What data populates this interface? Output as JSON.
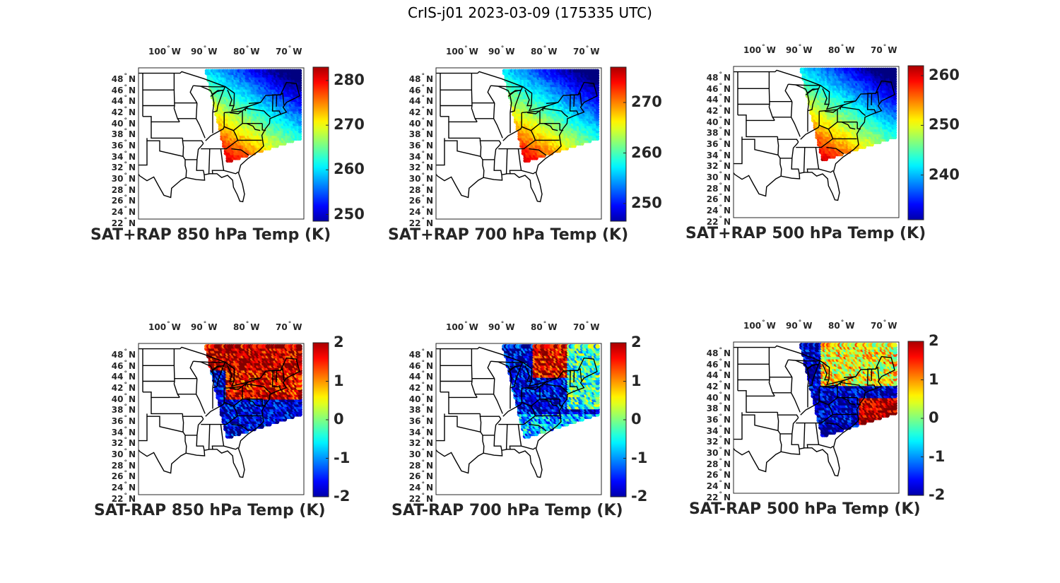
{
  "figure": {
    "title": "CrIS-j01 2023-03-09 (175335 UTC)"
  },
  "axes": {
    "lon_ticks": [
      {
        "value": 100,
        "deg": "°",
        "hemi": "W"
      },
      {
        "value": 90,
        "deg": "°",
        "hemi": "W"
      },
      {
        "value": 80,
        "deg": "°",
        "hemi": "W"
      },
      {
        "value": 70,
        "deg": "°",
        "hemi": "W"
      }
    ],
    "lat_ticks": [
      {
        "value": 48,
        "deg": "°",
        "hemi": "N"
      },
      {
        "value": 46,
        "deg": "°",
        "hemi": "N"
      },
      {
        "value": 44,
        "deg": "°",
        "hemi": "N"
      },
      {
        "value": 42,
        "deg": "°",
        "hemi": "N"
      },
      {
        "value": 40,
        "deg": "°",
        "hemi": "N"
      },
      {
        "value": 38,
        "deg": "°",
        "hemi": "N"
      },
      {
        "value": 36,
        "deg": "°",
        "hemi": "N"
      },
      {
        "value": 34,
        "deg": "°",
        "hemi": "N"
      },
      {
        "value": 32,
        "deg": "°",
        "hemi": "N"
      },
      {
        "value": 30,
        "deg": "°",
        "hemi": "N"
      },
      {
        "value": 28,
        "deg": "°",
        "hemi": "N"
      },
      {
        "value": 26,
        "deg": "°",
        "hemi": "N"
      },
      {
        "value": 24,
        "deg": "°",
        "hemi": "N"
      },
      {
        "value": 22,
        "deg": "°",
        "hemi": "N"
      }
    ],
    "lon_range": [
      -105,
      -66
    ],
    "lat_range": [
      22,
      50
    ]
  },
  "colormap": "jet",
  "map_colors": {
    "border": "#000000",
    "frame": "#262626",
    "background": "#ffffff"
  },
  "panels": [
    {
      "id": "sat-rap-sum-850",
      "title": "SAT+RAP 850 hPa Temp (K)",
      "field": "absolute",
      "level_hpa": 850,
      "cbar_ticks": [
        280,
        270,
        260,
        250
      ],
      "clim": [
        248.5,
        283
      ]
    },
    {
      "id": "sat-rap-sum-700",
      "title": "SAT+RAP 700 hPa Temp (K)",
      "field": "absolute",
      "level_hpa": 700,
      "cbar_ticks": [
        270,
        260,
        250
      ],
      "clim": [
        246.5,
        277
      ]
    },
    {
      "id": "sat-rap-sum-500",
      "title": "SAT+RAP 500 hPa Temp (K)",
      "field": "absolute",
      "level_hpa": 500,
      "cbar_ticks": [
        260,
        250,
        240
      ],
      "clim": [
        231,
        262
      ]
    },
    {
      "id": "sat-rap-diff-850",
      "title": "SAT-RAP 850 hPa Temp (K)",
      "field": "difference",
      "level_hpa": 850,
      "cbar_ticks": [
        2,
        1,
        0,
        -1,
        -2
      ],
      "clim": [
        -2,
        2
      ]
    },
    {
      "id": "sat-rap-diff-700",
      "title": "SAT-RAP 700 hPa Temp (K)",
      "field": "difference",
      "level_hpa": 700,
      "cbar_ticks": [
        2,
        1,
        0,
        -1,
        -2
      ],
      "clim": [
        -2,
        2
      ]
    },
    {
      "id": "sat-rap-diff-500",
      "title": "SAT-RAP 500 hPa Temp (K)",
      "field": "difference",
      "level_hpa": 500,
      "cbar_ticks": [
        2,
        1,
        0,
        -1,
        -2
      ],
      "clim": [
        -2,
        2
      ]
    }
  ]
}
